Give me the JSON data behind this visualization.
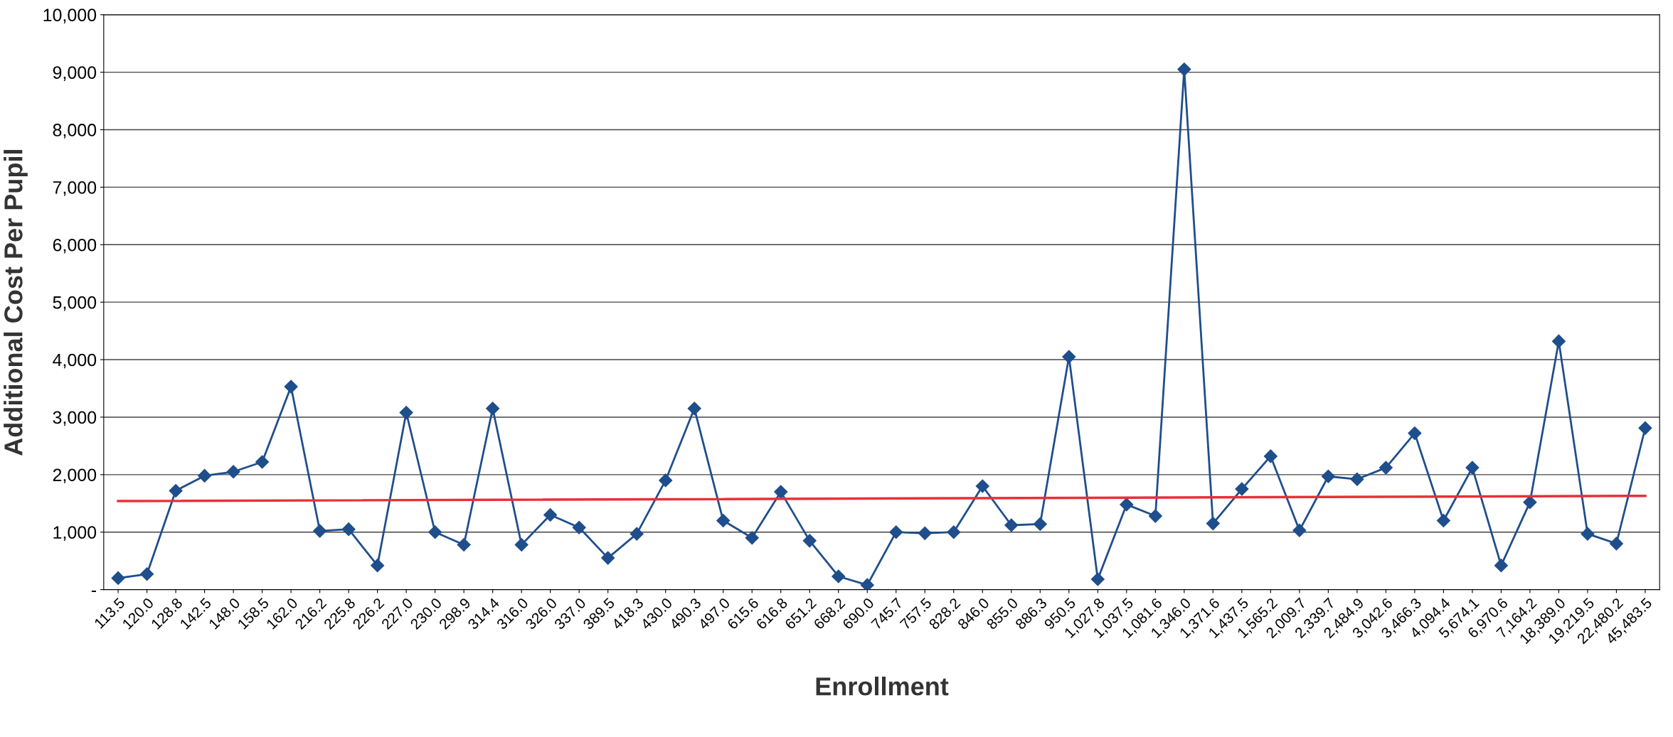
{
  "chart_data": {
    "type": "line",
    "xlabel": "Enrollment",
    "ylabel": "Additional Cost Per Pupil",
    "categories": [
      "113.5",
      "120.0",
      "128.8",
      "142.5",
      "148.0",
      "158.5",
      "162.0",
      "216.2",
      "225.8",
      "226.2",
      "227.0",
      "230.0",
      "298.9",
      "314.4",
      "316.0",
      "326.0",
      "337.0",
      "389.5",
      "418.3",
      "430.0",
      "490.3",
      "497.0",
      "615.6",
      "616.8",
      "651.2",
      "668.2",
      "690.0",
      "745.7",
      "757.5",
      "828.2",
      "846.0",
      "855.0",
      "886.3",
      "950.5",
      "1,027.8",
      "1,037.5",
      "1,081.6",
      "1,346.0",
      "1,371.6",
      "1,437.5",
      "1,565.2",
      "2,009.7",
      "2,339.7",
      "2,484.9",
      "3,042.6",
      "3,466.3",
      "4,094.4",
      "5,674.1",
      "6,970.6",
      "7,164.2",
      "18,389.0",
      "19,219.5",
      "22,480.2",
      "45,483.5"
    ],
    "series": [
      {
        "color": "#1f4e8c",
        "marker": "diamond",
        "values": [
          200,
          270,
          1720,
          1980,
          2050,
          2220,
          3530,
          1020,
          1050,
          420,
          3080,
          1000,
          780,
          3150,
          780,
          1300,
          1080,
          550,
          970,
          1900,
          3150,
          1200,
          900,
          1700,
          850,
          230,
          80,
          1000,
          980,
          1000,
          1800,
          1120,
          1140,
          4050,
          180,
          1480,
          1280,
          9050,
          1150,
          1750,
          2320,
          1030,
          1970,
          1920,
          2120,
          2720,
          1200,
          2120,
          420,
          1520,
          4320,
          970,
          800,
          2810
        ]
      },
      {
        "color": "#e8303a",
        "marker": "none",
        "values": [
          1540,
          null,
          null,
          null,
          null,
          null,
          null,
          null,
          null,
          null,
          null,
          null,
          null,
          null,
          null,
          null,
          null,
          null,
          null,
          null,
          null,
          null,
          null,
          null,
          null,
          null,
          null,
          null,
          null,
          null,
          null,
          null,
          null,
          null,
          null,
          null,
          null,
          null,
          null,
          null,
          null,
          null,
          null,
          null,
          null,
          null,
          null,
          null,
          null,
          null,
          null,
          null,
          null,
          1630
        ]
      }
    ],
    "ylim": [
      0,
      10000
    ],
    "yticks": [
      {
        "value": 0,
        "label": "-"
      },
      {
        "value": 1000,
        "label": "1,000"
      },
      {
        "value": 2000,
        "label": "2,000"
      },
      {
        "value": 3000,
        "label": "3,000"
      },
      {
        "value": 4000,
        "label": "4,000"
      },
      {
        "value": 5000,
        "label": "5,000"
      },
      {
        "value": 6000,
        "label": "6,000"
      },
      {
        "value": 7000,
        "label": "7,000"
      },
      {
        "value": 8000,
        "label": "8,000"
      },
      {
        "value": 9000,
        "label": "9,000"
      },
      {
        "value": 10000,
        "label": "10,000"
      }
    ],
    "grid": "y"
  }
}
